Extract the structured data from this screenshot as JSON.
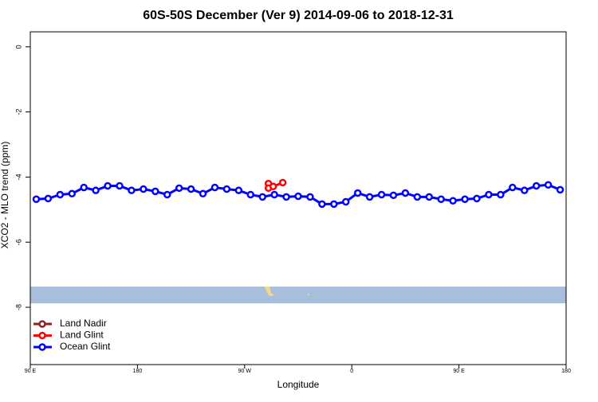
{
  "chart_data": {
    "type": "line",
    "title": "60S-50S December (Ver 9)   2014-09-06 to 2018-12-31",
    "x_label": "Longitude",
    "y_label": "XCO2 - MLO trend (ppm)",
    "xlim": [
      90,
      540
    ],
    "xticks": [
      {
        "value": 90,
        "label": "90 E"
      },
      {
        "value": 180,
        "label": "180"
      },
      {
        "value": 270,
        "label": "90 W"
      },
      {
        "value": 360,
        "label": "0"
      },
      {
        "value": 450,
        "label": "90 E"
      },
      {
        "value": 540,
        "label": "180"
      }
    ],
    "ylim": [
      -9.76,
      0.46
    ],
    "yticks": [
      0,
      -2,
      -4,
      -6,
      -8
    ],
    "legend": "bottomleft",
    "series": [
      {
        "name": "Land Nadir",
        "color": "#8b2323",
        "x": [],
        "values": []
      },
      {
        "name": "Land Glint",
        "color": "#ff0000",
        "x": [
          290,
          290,
          294,
          302
        ],
        "values": [
          -4.2,
          -4.34,
          -4.29,
          -4.17
        ]
      },
      {
        "name": "Ocean Glint",
        "color": "#0000ff",
        "x": [
          95,
          105,
          115,
          125,
          135,
          145,
          155,
          165,
          175,
          185,
          195,
          205,
          215,
          225,
          235,
          245,
          255,
          265,
          275,
          285,
          295,
          305,
          315,
          325,
          335,
          345,
          355,
          365,
          375,
          385,
          395,
          405,
          415,
          425,
          435,
          445,
          455,
          465,
          475,
          485,
          495,
          505,
          515,
          525,
          535
        ],
        "values": [
          -4.68,
          -4.66,
          -4.54,
          -4.51,
          -4.32,
          -4.41,
          -4.27,
          -4.27,
          -4.41,
          -4.37,
          -4.44,
          -4.54,
          -4.34,
          -4.37,
          -4.51,
          -4.32,
          -4.37,
          -4.41,
          -4.54,
          -4.61,
          -4.54,
          -4.61,
          -4.59,
          -4.61,
          -4.83,
          -4.83,
          -4.76,
          -4.49,
          -4.61,
          -4.54,
          -4.56,
          -4.49,
          -4.61,
          -4.61,
          -4.68,
          -4.73,
          -4.68,
          -4.66,
          -4.54,
          -4.54,
          -4.32,
          -4.41,
          -4.27,
          -4.24,
          -4.39
        ]
      }
    ]
  }
}
